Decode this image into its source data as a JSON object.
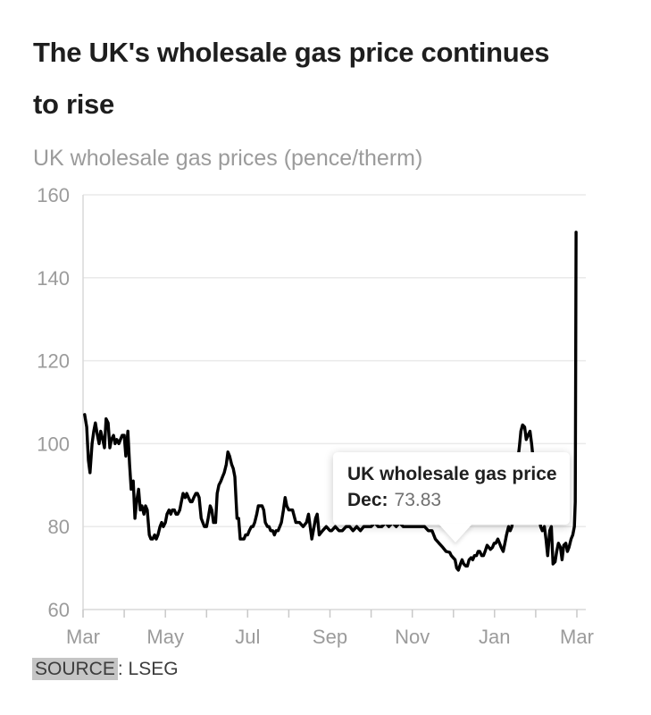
{
  "header": {
    "title_line1": "The UK's wholesale gas price continues",
    "title_line2": "to rise",
    "subtitle": "UK wholesale gas prices (pence/therm)"
  },
  "tooltip": {
    "title": "UK wholesale gas price",
    "label": "Dec:",
    "value": "73.83"
  },
  "source": {
    "label": "SOURCE",
    "separator": ": ",
    "name": "LSEG"
  },
  "chart_data": {
    "type": "line",
    "title": "The UK's wholesale gas price continues to rise",
    "subtitle": "UK wholesale gas prices (pence/therm)",
    "series_name": "UK wholesale gas price",
    "ylabel": "pence/therm",
    "xlabel": "",
    "ylim": [
      60,
      160
    ],
    "xlim": [
      0,
      12
    ],
    "grid": "horizontal",
    "legend": "none",
    "line_color": "#000000",
    "x_unit": "months elapsed since first March tick (minor tick every month)",
    "x_tick_labels": [
      "Mar",
      "May",
      "Jul",
      "Sep",
      "Nov",
      "Jan",
      "Mar"
    ],
    "y_tick_labels": [
      "160",
      "140",
      "120",
      "100",
      "80",
      "60"
    ],
    "highlighted_point": {
      "month": "Dec",
      "value": 73.83
    },
    "peak_value": 151,
    "points": [
      [
        0.04,
        107
      ],
      [
        0.09,
        104
      ],
      [
        0.13,
        96
      ],
      [
        0.17,
        93
      ],
      [
        0.22,
        100
      ],
      [
        0.26,
        103
      ],
      [
        0.3,
        105
      ],
      [
        0.35,
        102
      ],
      [
        0.39,
        100
      ],
      [
        0.43,
        103
      ],
      [
        0.48,
        101
      ],
      [
        0.52,
        99
      ],
      [
        0.56,
        106
      ],
      [
        0.61,
        105
      ],
      [
        0.65,
        99
      ],
      [
        0.69,
        101
      ],
      [
        0.74,
        102
      ],
      [
        0.78,
        100
      ],
      [
        0.82,
        101
      ],
      [
        0.87,
        100
      ],
      [
        0.91,
        101
      ],
      [
        0.95,
        102
      ],
      [
        1.0,
        102
      ],
      [
        1.04,
        97
      ],
      [
        1.09,
        103
      ],
      [
        1.13,
        95
      ],
      [
        1.17,
        89
      ],
      [
        1.22,
        91
      ],
      [
        1.26,
        82
      ],
      [
        1.3,
        86
      ],
      [
        1.35,
        89
      ],
      [
        1.39,
        84
      ],
      [
        1.43,
        85
      ],
      [
        1.48,
        83
      ],
      [
        1.52,
        85
      ],
      [
        1.56,
        84
      ],
      [
        1.61,
        78
      ],
      [
        1.65,
        77
      ],
      [
        1.69,
        77
      ],
      [
        1.74,
        78
      ],
      [
        1.78,
        77
      ],
      [
        1.82,
        78
      ],
      [
        1.87,
        80
      ],
      [
        1.91,
        81
      ],
      [
        1.95,
        80
      ],
      [
        2.0,
        81
      ],
      [
        2.04,
        83
      ],
      [
        2.09,
        84
      ],
      [
        2.13,
        83
      ],
      [
        2.17,
        84
      ],
      [
        2.22,
        84
      ],
      [
        2.26,
        83
      ],
      [
        2.3,
        83
      ],
      [
        2.35,
        84
      ],
      [
        2.39,
        86
      ],
      [
        2.43,
        88
      ],
      [
        2.48,
        87
      ],
      [
        2.52,
        88
      ],
      [
        2.56,
        87
      ],
      [
        2.61,
        86
      ],
      [
        2.65,
        86
      ],
      [
        2.69,
        87
      ],
      [
        2.74,
        88
      ],
      [
        2.78,
        88
      ],
      [
        2.82,
        87
      ],
      [
        2.87,
        82
      ],
      [
        2.91,
        81
      ],
      [
        2.95,
        80
      ],
      [
        3.0,
        80
      ],
      [
        3.04,
        82
      ],
      [
        3.09,
        85
      ],
      [
        3.13,
        84
      ],
      [
        3.17,
        81
      ],
      [
        3.22,
        81
      ],
      [
        3.26,
        88
      ],
      [
        3.3,
        90
      ],
      [
        3.35,
        91
      ],
      [
        3.39,
        92
      ],
      [
        3.43,
        93
      ],
      [
        3.48,
        95
      ],
      [
        3.52,
        98
      ],
      [
        3.56,
        97
      ],
      [
        3.61,
        95
      ],
      [
        3.65,
        94
      ],
      [
        3.69,
        92
      ],
      [
        3.74,
        82
      ],
      [
        3.78,
        82
      ],
      [
        3.82,
        77
      ],
      [
        3.87,
        77
      ],
      [
        3.91,
        77
      ],
      [
        3.95,
        78
      ],
      [
        4.0,
        78
      ],
      [
        4.04,
        79
      ],
      [
        4.09,
        80
      ],
      [
        4.13,
        80
      ],
      [
        4.17,
        81
      ],
      [
        4.22,
        83
      ],
      [
        4.26,
        85
      ],
      [
        4.3,
        85
      ],
      [
        4.35,
        85
      ],
      [
        4.39,
        84
      ],
      [
        4.43,
        81
      ],
      [
        4.48,
        80
      ],
      [
        4.52,
        80
      ],
      [
        4.56,
        79
      ],
      [
        4.61,
        79
      ],
      [
        4.65,
        78
      ],
      [
        4.69,
        79
      ],
      [
        4.74,
        79
      ],
      [
        4.78,
        80
      ],
      [
        4.82,
        81
      ],
      [
        4.87,
        84
      ],
      [
        4.91,
        87
      ],
      [
        4.95,
        85
      ],
      [
        5.0,
        84
      ],
      [
        5.09,
        84
      ],
      [
        5.17,
        81
      ],
      [
        5.26,
        81
      ],
      [
        5.35,
        80
      ],
      [
        5.43,
        81
      ],
      [
        5.48,
        83
      ],
      [
        5.56,
        77
      ],
      [
        5.65,
        82
      ],
      [
        5.69,
        83
      ],
      [
        5.74,
        78
      ],
      [
        5.82,
        79
      ],
      [
        5.91,
        80
      ],
      [
        6.0,
        79
      ],
      [
        6.04,
        79
      ],
      [
        6.13,
        80
      ],
      [
        6.22,
        79
      ],
      [
        6.3,
        79
      ],
      [
        6.39,
        80
      ],
      [
        6.48,
        80
      ],
      [
        6.56,
        79
      ],
      [
        6.65,
        80
      ],
      [
        6.74,
        79
      ],
      [
        6.82,
        80
      ],
      [
        6.91,
        80
      ],
      [
        7.0,
        80
      ],
      [
        7.09,
        81
      ],
      [
        7.17,
        80
      ],
      [
        7.26,
        80
      ],
      [
        7.35,
        81
      ],
      [
        7.43,
        80
      ],
      [
        7.52,
        81
      ],
      [
        7.61,
        80
      ],
      [
        7.69,
        81
      ],
      [
        7.78,
        80
      ],
      [
        7.87,
        80
      ],
      [
        7.95,
        80
      ],
      [
        8.04,
        80
      ],
      [
        8.13,
        80
      ],
      [
        8.22,
        80
      ],
      [
        8.3,
        80
      ],
      [
        8.39,
        79
      ],
      [
        8.48,
        79
      ],
      [
        8.56,
        77
      ],
      [
        8.65,
        76
      ],
      [
        8.74,
        75
      ],
      [
        8.82,
        74
      ],
      [
        8.91,
        73.8
      ],
      [
        8.95,
        73
      ],
      [
        9.04,
        72
      ],
      [
        9.08,
        70
      ],
      [
        9.12,
        69.5
      ],
      [
        9.17,
        71
      ],
      [
        9.21,
        72
      ],
      [
        9.25,
        71
      ],
      [
        9.3,
        70.5
      ],
      [
        9.34,
        70.5
      ],
      [
        9.38,
        72
      ],
      [
        9.43,
        72.5
      ],
      [
        9.47,
        72
      ],
      [
        9.51,
        73
      ],
      [
        9.56,
        73
      ],
      [
        9.6,
        74
      ],
      [
        9.64,
        74
      ],
      [
        9.69,
        73
      ],
      [
        9.73,
        73
      ],
      [
        9.77,
        74
      ],
      [
        9.82,
        75.5
      ],
      [
        9.86,
        75
      ],
      [
        9.9,
        74.5
      ],
      [
        9.95,
        75
      ],
      [
        9.99,
        76
      ],
      [
        10.03,
        76
      ],
      [
        10.08,
        77
      ],
      [
        10.12,
        76
      ],
      [
        10.16,
        75
      ],
      [
        10.21,
        74
      ],
      [
        10.25,
        76
      ],
      [
        10.29,
        78
      ],
      [
        10.34,
        80
      ],
      [
        10.38,
        79
      ],
      [
        10.42,
        80
      ],
      [
        10.47,
        84
      ],
      [
        10.51,
        90
      ],
      [
        10.55,
        95
      ],
      [
        10.6,
        99
      ],
      [
        10.64,
        103
      ],
      [
        10.68,
        104.5
      ],
      [
        10.73,
        104
      ],
      [
        10.77,
        101
      ],
      [
        10.81,
        102
      ],
      [
        10.86,
        103
      ],
      [
        10.9,
        100
      ],
      [
        10.94,
        96
      ],
      [
        10.99,
        92
      ],
      [
        11.03,
        88
      ],
      [
        11.07,
        84
      ],
      [
        11.12,
        80
      ],
      [
        11.16,
        79
      ],
      [
        11.21,
        80
      ],
      [
        11.25,
        77
      ],
      [
        11.29,
        73
      ],
      [
        11.34,
        79
      ],
      [
        11.38,
        80
      ],
      [
        11.42,
        71
      ],
      [
        11.47,
        71.5
      ],
      [
        11.51,
        74
      ],
      [
        11.55,
        76
      ],
      [
        11.6,
        75
      ],
      [
        11.64,
        72
      ],
      [
        11.68,
        75.5
      ],
      [
        11.73,
        76
      ],
      [
        11.77,
        74
      ],
      [
        11.81,
        75
      ],
      [
        11.86,
        77
      ],
      [
        11.9,
        78
      ],
      [
        11.94,
        80
      ],
      [
        11.96,
        86
      ],
      [
        11.98,
        151
      ]
    ]
  },
  "colors": {
    "title": "#1e1e1e",
    "muted_text": "#9b9b9b",
    "gridline": "#eaeaea",
    "axis": "#d8d8d8",
    "line": "#000000",
    "tooltip_value": "#6f6f6f",
    "source_highlight": "#c5c5c5"
  }
}
